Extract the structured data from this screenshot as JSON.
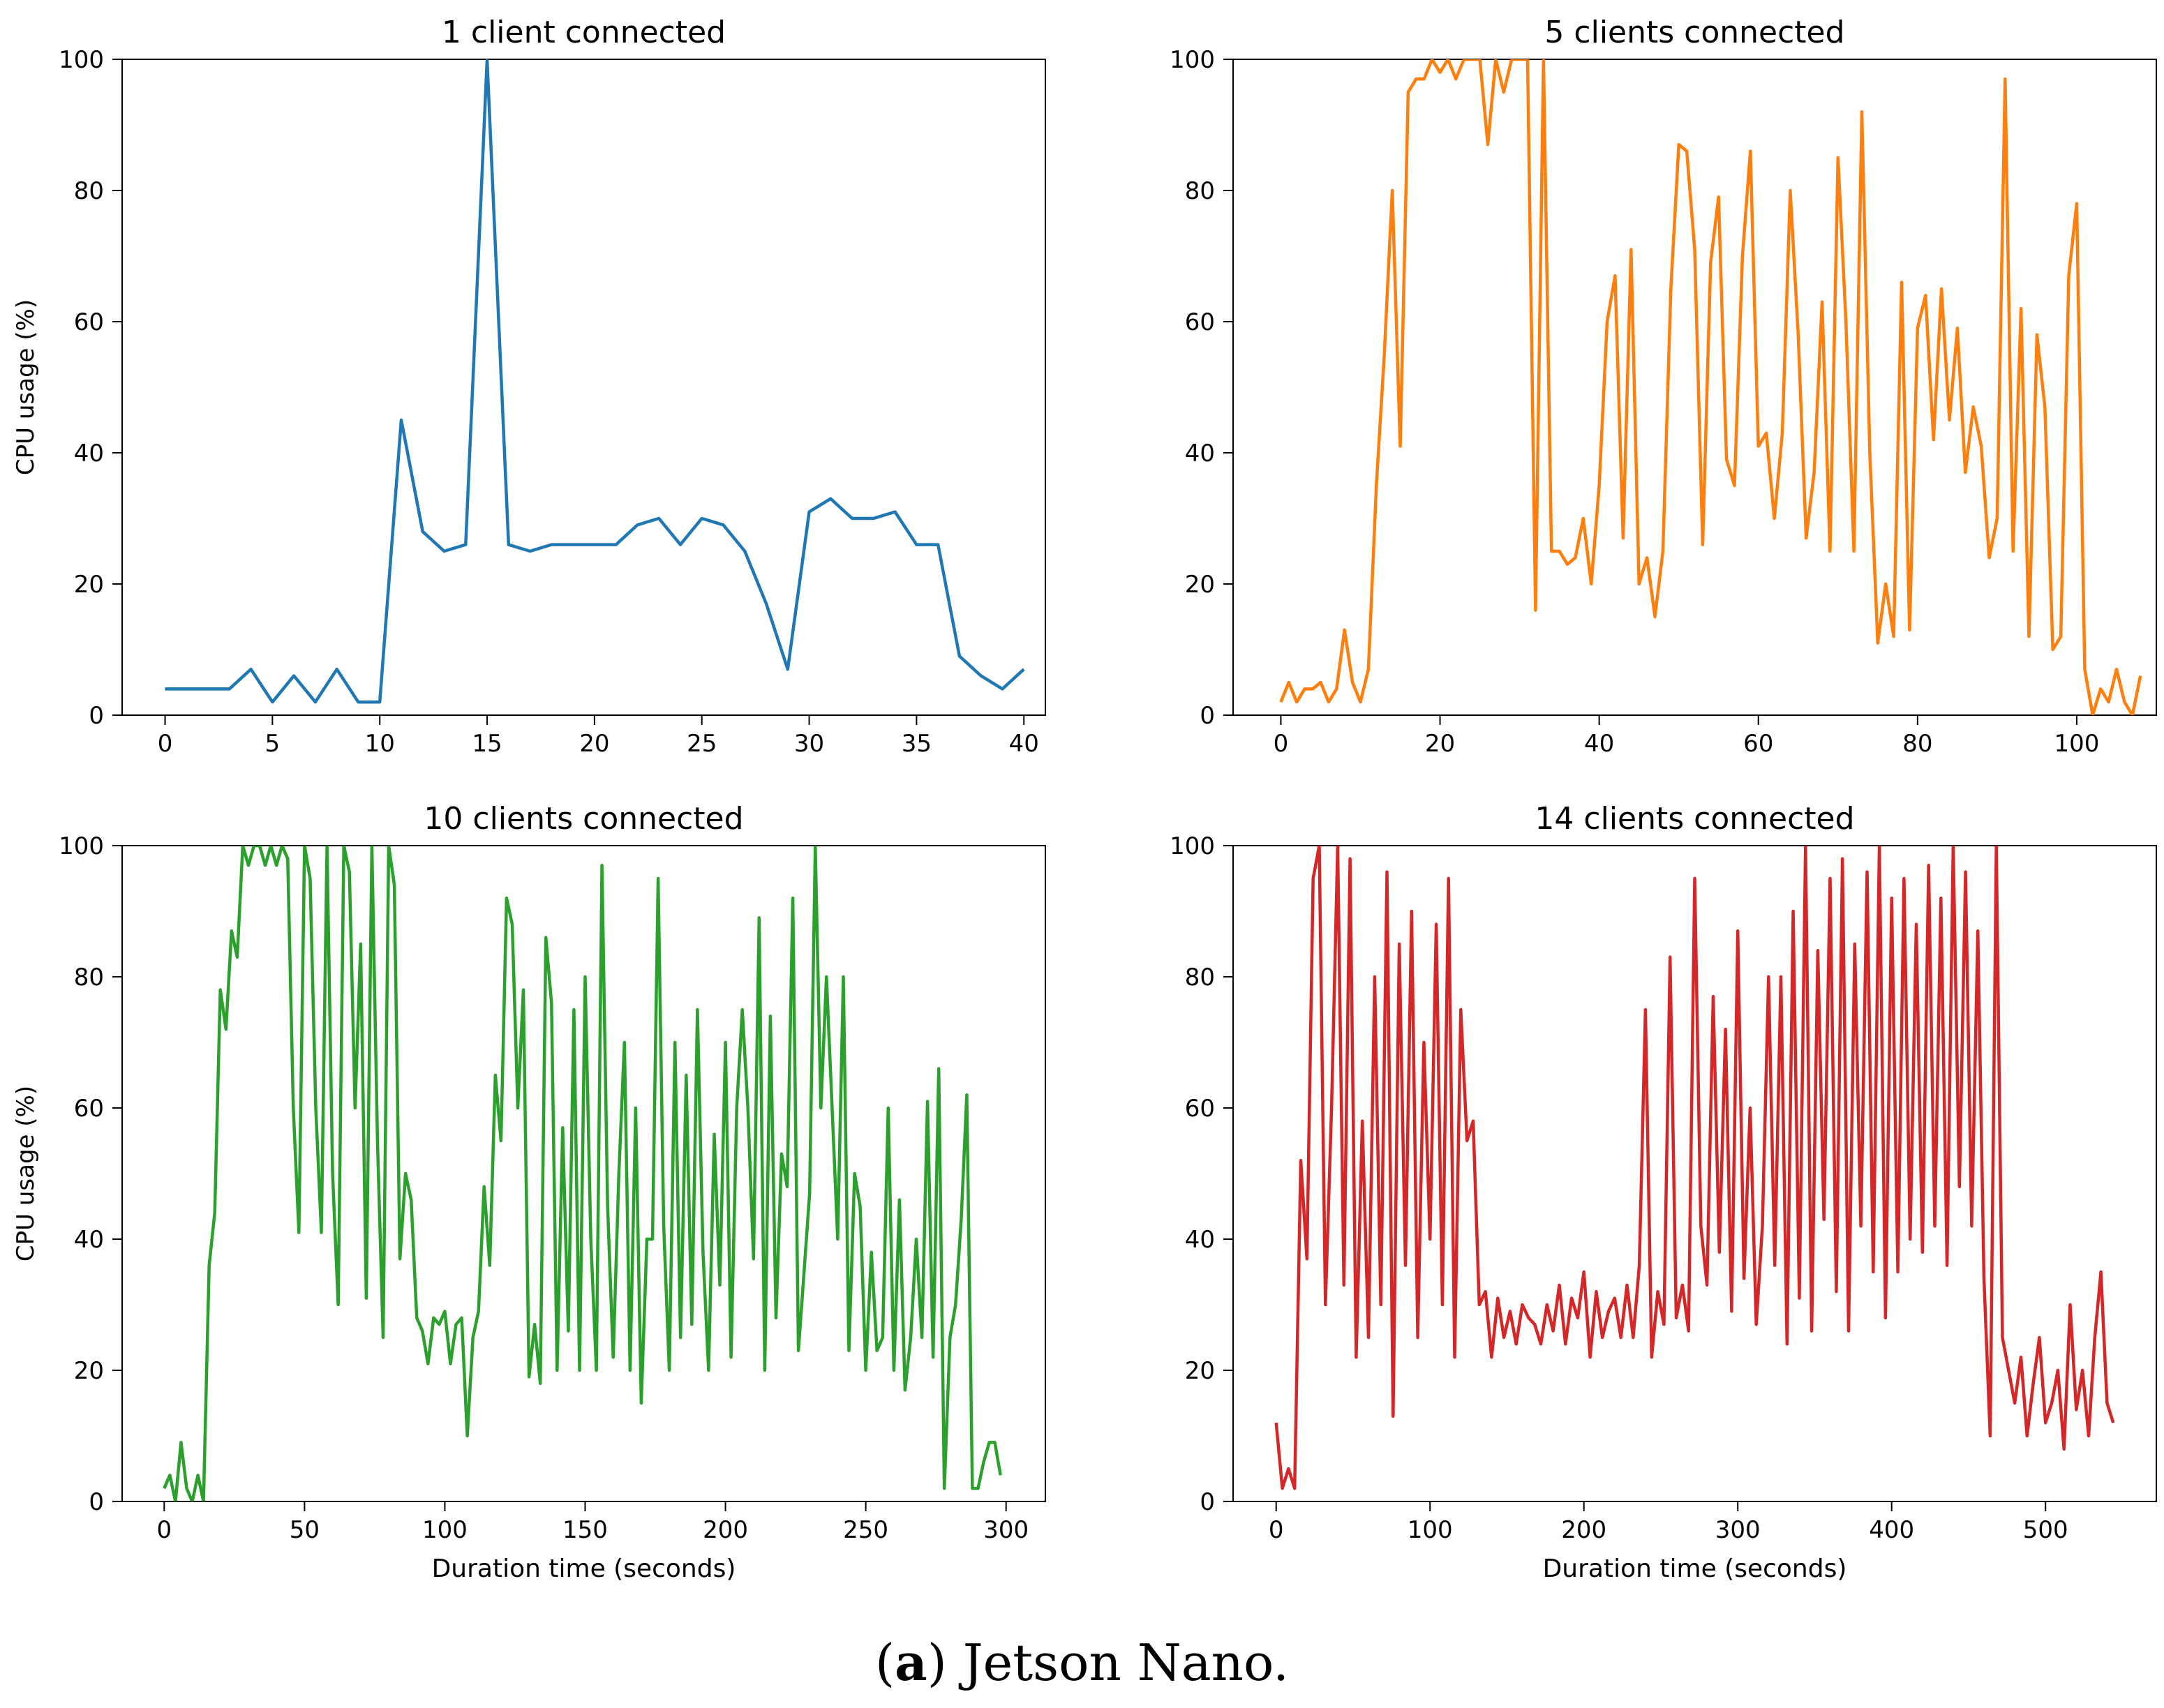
{
  "caption": {
    "label": "a",
    "text": "Jetson Nano."
  },
  "chart_data": [
    {
      "type": "line",
      "title": "1 client connected",
      "xlabel": "",
      "ylabel": "CPU usage (%)",
      "color": "#1f77b4",
      "xlim": [
        -2,
        41
      ],
      "ylim": [
        0,
        100
      ],
      "xticks": [
        0,
        5,
        10,
        15,
        20,
        25,
        30,
        35,
        40
      ],
      "yticks": [
        0,
        20,
        40,
        60,
        80,
        100
      ],
      "series": [
        {
          "name": "1 client",
          "x": [
            0,
            1,
            2,
            3,
            4,
            5,
            6,
            7,
            8,
            9,
            10,
            11,
            12,
            13,
            14,
            15,
            16,
            17,
            18,
            19,
            20,
            21,
            22,
            23,
            24,
            25,
            26,
            27,
            28,
            29,
            30,
            31,
            32,
            33,
            34,
            35,
            36,
            37,
            38,
            39,
            40
          ],
          "y": [
            4,
            4,
            4,
            4,
            7,
            2,
            6,
            2,
            7,
            2,
            2,
            45,
            28,
            25,
            26,
            100,
            26,
            25,
            26,
            26,
            26,
            26,
            29,
            30,
            26,
            30,
            29,
            25,
            17,
            7,
            31,
            33,
            30,
            30,
            31,
            26,
            26,
            9,
            6,
            4,
            7
          ]
        }
      ]
    },
    {
      "type": "line",
      "title": "5 clients connected",
      "xlabel": "",
      "ylabel": "",
      "color": "#ff7f0e",
      "xlim": [
        -6,
        110
      ],
      "ylim": [
        0,
        100
      ],
      "xticks": [
        0,
        20,
        40,
        60,
        80,
        100
      ],
      "yticks": [
        0,
        20,
        40,
        60,
        80,
        100
      ],
      "series": [
        {
          "name": "5 clients",
          "x": [
            0,
            1,
            2,
            3,
            4,
            5,
            6,
            7,
            8,
            9,
            10,
            11,
            12,
            13,
            14,
            15,
            16,
            17,
            18,
            19,
            20,
            21,
            22,
            23,
            24,
            25,
            26,
            27,
            28,
            29,
            30,
            31,
            32,
            33,
            34,
            35,
            36,
            37,
            38,
            39,
            40,
            41,
            42,
            43,
            44,
            45,
            46,
            47,
            48,
            49,
            50,
            51,
            52,
            53,
            54,
            55,
            56,
            57,
            58,
            59,
            60,
            61,
            62,
            63,
            64,
            65,
            66,
            67,
            68,
            69,
            70,
            71,
            72,
            73,
            74,
            75,
            76,
            77,
            78,
            79,
            80,
            81,
            82,
            83,
            84,
            85,
            86,
            87,
            88,
            89,
            90,
            91,
            92,
            93,
            94,
            95,
            96,
            97,
            98,
            99,
            100,
            101,
            102,
            103,
            104,
            105,
            106,
            107,
            108
          ],
          "y": [
            2,
            5,
            2,
            4,
            4,
            5,
            2,
            4,
            13,
            5,
            2,
            7,
            35,
            55,
            80,
            41,
            95,
            97,
            97,
            100,
            98,
            100,
            97,
            100,
            100,
            100,
            87,
            100,
            95,
            100,
            100,
            100,
            16,
            100,
            25,
            25,
            23,
            24,
            30,
            20,
            35,
            60,
            67,
            27,
            71,
            20,
            24,
            15,
            25,
            65,
            87,
            86,
            71,
            26,
            69,
            79,
            39,
            35,
            70,
            86,
            41,
            43,
            30,
            43,
            80,
            58,
            27,
            37,
            63,
            25,
            85,
            60,
            25,
            92,
            40,
            11,
            20,
            12,
            66,
            13,
            59,
            64,
            42,
            65,
            45,
            59,
            37,
            47,
            41,
            24,
            30,
            97,
            25,
            62,
            12,
            58,
            47,
            10,
            12,
            67,
            78,
            7,
            0,
            4,
            2,
            7,
            2,
            0,
            6
          ]
        }
      ]
    },
    {
      "type": "line",
      "title": "10 clients connected",
      "xlabel": "Duration time (seconds)",
      "ylabel": "CPU usage (%)",
      "color": "#2ca02c",
      "xlim": [
        -15,
        314
      ],
      "ylim": [
        0,
        100
      ],
      "xticks": [
        0,
        50,
        100,
        150,
        200,
        250,
        300
      ],
      "yticks": [
        0,
        20,
        40,
        60,
        80,
        100
      ],
      "series": [
        {
          "name": "10 clients",
          "x": [
            0,
            2,
            4,
            6,
            8,
            10,
            12,
            14,
            16,
            18,
            20,
            22,
            24,
            26,
            28,
            30,
            32,
            34,
            36,
            38,
            40,
            42,
            44,
            46,
            48,
            50,
            52,
            54,
            56,
            58,
            60,
            62,
            64,
            66,
            68,
            70,
            72,
            74,
            76,
            78,
            80,
            82,
            84,
            86,
            88,
            90,
            92,
            94,
            96,
            98,
            100,
            102,
            104,
            106,
            108,
            110,
            112,
            114,
            116,
            118,
            120,
            122,
            124,
            126,
            128,
            130,
            132,
            134,
            136,
            138,
            140,
            142,
            144,
            146,
            148,
            150,
            152,
            154,
            156,
            158,
            160,
            162,
            164,
            166,
            168,
            170,
            172,
            174,
            176,
            178,
            180,
            182,
            184,
            186,
            188,
            190,
            192,
            194,
            196,
            198,
            200,
            202,
            204,
            206,
            208,
            210,
            212,
            214,
            216,
            218,
            220,
            222,
            224,
            226,
            228,
            230,
            232,
            234,
            236,
            238,
            240,
            242,
            244,
            246,
            248,
            250,
            252,
            254,
            256,
            258,
            260,
            262,
            264,
            266,
            268,
            270,
            272,
            274,
            276,
            278,
            280,
            282,
            284,
            286,
            288,
            290,
            292,
            294,
            296,
            298
          ],
          "y": [
            2,
            4,
            0,
            9,
            2,
            0,
            4,
            0,
            36,
            44,
            78,
            72,
            87,
            83,
            100,
            97,
            100,
            100,
            97,
            100,
            97,
            100,
            98,
            60,
            41,
            100,
            95,
            60,
            41,
            100,
            50,
            30,
            100,
            96,
            60,
            85,
            31,
            100,
            55,
            25,
            100,
            94,
            37,
            50,
            46,
            28,
            26,
            21,
            28,
            27,
            29,
            21,
            27,
            28,
            10,
            25,
            29,
            48,
            36,
            65,
            55,
            92,
            88,
            60,
            78,
            19,
            27,
            18,
            86,
            76,
            20,
            57,
            26,
            75,
            20,
            80,
            40,
            20,
            97,
            45,
            22,
            50,
            70,
            20,
            60,
            15,
            40,
            40,
            95,
            42,
            20,
            70,
            25,
            65,
            27,
            75,
            38,
            20,
            56,
            33,
            70,
            22,
            60,
            75,
            60,
            37,
            89,
            20,
            74,
            28,
            53,
            48,
            92,
            23,
            35,
            47,
            100,
            60,
            80,
            60,
            40,
            80,
            23,
            50,
            45,
            20,
            38,
            23,
            25,
            60,
            20,
            46,
            17,
            25,
            40,
            25,
            61,
            22,
            66,
            2,
            25,
            30,
            43,
            62,
            2,
            2,
            6,
            9,
            9,
            4
          ]
        }
      ]
    },
    {
      "type": "line",
      "title": "14 clients connected",
      "xlabel": "Duration time (seconds)",
      "ylabel": "",
      "color": "#d62728",
      "xlim": [
        -28,
        572
      ],
      "ylim": [
        0,
        100
      ],
      "xticks": [
        0,
        100,
        200,
        300,
        400,
        500
      ],
      "yticks": [
        0,
        20,
        40,
        60,
        80,
        100
      ],
      "series": [
        {
          "name": "14 clients",
          "x": [
            0,
            4,
            8,
            12,
            16,
            20,
            24,
            28,
            32,
            36,
            40,
            44,
            48,
            52,
            56,
            60,
            64,
            68,
            72,
            76,
            80,
            84,
            88,
            92,
            96,
            100,
            104,
            108,
            112,
            116,
            120,
            124,
            128,
            132,
            136,
            140,
            144,
            148,
            152,
            156,
            160,
            164,
            168,
            172,
            176,
            180,
            184,
            188,
            192,
            196,
            200,
            204,
            208,
            212,
            216,
            220,
            224,
            228,
            232,
            236,
            240,
            244,
            248,
            252,
            256,
            260,
            264,
            268,
            272,
            276,
            280,
            284,
            288,
            292,
            296,
            300,
            304,
            308,
            312,
            316,
            320,
            324,
            328,
            332,
            336,
            340,
            344,
            348,
            352,
            356,
            360,
            364,
            368,
            372,
            376,
            380,
            384,
            388,
            392,
            396,
            400,
            404,
            408,
            412,
            416,
            420,
            424,
            428,
            432,
            436,
            440,
            444,
            448,
            452,
            456,
            460,
            464,
            468,
            472,
            476,
            480,
            484,
            488,
            492,
            496,
            500,
            504,
            508,
            512,
            516,
            520,
            524,
            528,
            532,
            536,
            540,
            544
          ],
          "y": [
            12,
            2,
            5,
            2,
            52,
            37,
            95,
            100,
            30,
            60,
            100,
            33,
            98,
            22,
            58,
            25,
            80,
            30,
            96,
            13,
            85,
            36,
            90,
            25,
            70,
            40,
            88,
            30,
            95,
            22,
            75,
            55,
            58,
            30,
            32,
            22,
            31,
            25,
            29,
            24,
            30,
            28,
            27,
            24,
            30,
            26,
            33,
            24,
            31,
            28,
            35,
            22,
            32,
            25,
            29,
            31,
            25,
            33,
            25,
            36,
            75,
            22,
            32,
            27,
            83,
            28,
            33,
            26,
            95,
            42,
            33,
            77,
            38,
            72,
            29,
            87,
            34,
            60,
            27,
            42,
            80,
            36,
            80,
            24,
            90,
            31,
            100,
            26,
            84,
            43,
            95,
            32,
            98,
            26,
            85,
            42,
            96,
            35,
            100,
            28,
            92,
            35,
            95,
            40,
            88,
            38,
            97,
            42,
            92,
            36,
            100,
            48,
            96,
            42,
            87,
            34,
            10,
            100,
            25,
            20,
            15,
            22,
            10,
            18,
            25,
            12,
            15,
            20,
            8,
            30,
            14,
            20,
            10,
            25,
            35,
            15,
            12
          ]
        }
      ]
    }
  ]
}
